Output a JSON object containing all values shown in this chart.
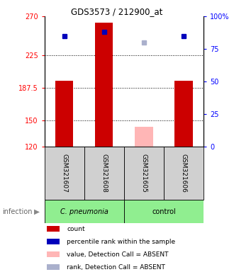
{
  "title": "GDS3573 / 212900_at",
  "samples": [
    "GSM321607",
    "GSM321608",
    "GSM321605",
    "GSM321606"
  ],
  "bar_colors_present": "#cc0000",
  "bar_colors_absent": "#ffb6b6",
  "dot_colors_present": "#0000bb",
  "dot_colors_absent": "#aab0cc",
  "count_values": [
    196,
    263,
    143,
    196
  ],
  "absent_flags": [
    false,
    false,
    true,
    false
  ],
  "percentile_values": [
    85,
    88,
    80,
    85
  ],
  "absent_pct_flags": [
    false,
    false,
    true,
    false
  ],
  "ylim_left": [
    120,
    270
  ],
  "ylim_right": [
    0,
    100
  ],
  "yticks_left": [
    120,
    150,
    187.5,
    225,
    270
  ],
  "ytick_labels_left": [
    "120",
    "150",
    "187.5",
    "225",
    "270"
  ],
  "yticks_right": [
    0,
    25,
    50,
    75,
    100
  ],
  "ytick_labels_right": [
    "0",
    "25",
    "50",
    "75",
    "100%"
  ],
  "sample_box_color": "#d0d0d0",
  "group1_label": "C. pneumonia",
  "group2_label": "control",
  "group_color": "#90ee90",
  "infection_label": "infection",
  "legend_items": [
    {
      "label": "count",
      "color": "#cc0000"
    },
    {
      "label": "percentile rank within the sample",
      "color": "#0000bb"
    },
    {
      "label": "value, Detection Call = ABSENT",
      "color": "#ffb6b6"
    },
    {
      "label": "rank, Detection Call = ABSENT",
      "color": "#aab0cc"
    }
  ],
  "bar_width": 0.45,
  "dot_size": 4
}
